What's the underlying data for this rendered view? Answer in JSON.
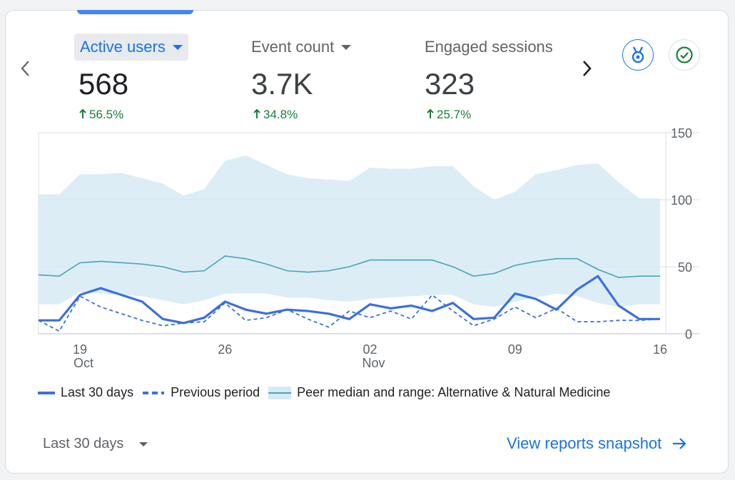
{
  "metrics": [
    {
      "label": "Active users",
      "value": "568",
      "change": "56.5%",
      "active": true
    },
    {
      "label": "Event count",
      "value": "3.7K",
      "change": "34.8%",
      "active": false
    },
    {
      "label": "Engaged sessions",
      "value": "323",
      "change": "25.7%",
      "active": false
    }
  ],
  "buttons": {
    "badge_icon": "medal-icon",
    "check_icon": "check-circle-icon",
    "prev_icon": "chevron-left-icon",
    "next_icon": "chevron-right-icon",
    "up_arrow": "arrow-up-icon"
  },
  "colors": {
    "accent": "#1a73e8",
    "series_current": "#3b6fde",
    "peer_band": "#d6eaf5",
    "peer_line": "#4aa3b5",
    "positive": "#188038"
  },
  "chart_data": {
    "type": "line",
    "x": [
      "Oct 17",
      "Oct 18",
      "Oct 19",
      "Oct 20",
      "Oct 21",
      "Oct 22",
      "Oct 23",
      "Oct 24",
      "Oct 25",
      "Oct 26",
      "Oct 27",
      "Oct 28",
      "Oct 29",
      "Oct 30",
      "Oct 31",
      "Nov 01",
      "Nov 02",
      "Nov 03",
      "Nov 04",
      "Nov 05",
      "Nov 06",
      "Nov 07",
      "Nov 08",
      "Nov 09",
      "Nov 10",
      "Nov 11",
      "Nov 12",
      "Nov 13",
      "Nov 14",
      "Nov 15",
      "Nov 16"
    ],
    "x_ticks": [
      {
        "day": "19",
        "month": "Oct"
      },
      {
        "day": "26",
        "month": ""
      },
      {
        "day": "02",
        "month": "Nov"
      },
      {
        "day": "09",
        "month": ""
      },
      {
        "day": "16",
        "month": ""
      }
    ],
    "y_ticks": [
      "0",
      "50",
      "100",
      "150"
    ],
    "ylim": [
      0,
      150
    ],
    "grid": true,
    "series": [
      {
        "name": "Last 30 days",
        "style": "solid",
        "values": [
          10,
          10,
          29,
          34,
          29,
          24,
          11,
          8,
          12,
          24,
          18,
          15,
          18,
          17,
          15,
          11,
          22,
          19,
          21,
          17,
          23,
          11,
          12,
          30,
          26,
          18,
          33,
          43,
          21,
          11,
          11
        ]
      },
      {
        "name": "Previous period",
        "style": "dashed",
        "values": [
          10,
          2,
          28,
          20,
          15,
          10,
          6,
          8,
          9,
          23,
          10,
          12,
          18,
          11,
          5,
          17,
          12,
          17,
          11,
          29,
          17,
          6,
          11,
          20,
          12,
          19,
          9,
          9,
          10,
          10,
          11
        ]
      },
      {
        "name": "Peer median and range: Alternative & Natural Medicine",
        "style": "band",
        "median": [
          44,
          43,
          53,
          54,
          53,
          52,
          50,
          46,
          47,
          58,
          56,
          52,
          47,
          46,
          47,
          50,
          55,
          55,
          55,
          55,
          50,
          43,
          45,
          51,
          54,
          56,
          56,
          48,
          42,
          43,
          43
        ],
        "upper": [
          104,
          104,
          119,
          119,
          120,
          116,
          112,
          103,
          108,
          129,
          133,
          126,
          119,
          116,
          115,
          114,
          124,
          123,
          123,
          125,
          125,
          110,
          100,
          106,
          119,
          122,
          126,
          127,
          113,
          101,
          101
        ],
        "lower": [
          22,
          22,
          31,
          30,
          29,
          28,
          25,
          22,
          25,
          30,
          30,
          30,
          27,
          27,
          25,
          24,
          26,
          27,
          28,
          29,
          29,
          22,
          20,
          24,
          27,
          30,
          28,
          23,
          20,
          22,
          22
        ]
      }
    ]
  },
  "legend": {
    "current": "Last 30 days",
    "previous": "Previous period",
    "peer": "Peer median and range: Alternative & Natural Medicine"
  },
  "footer": {
    "range_label": "Last 30 days",
    "snapshot_link": "View reports snapshot",
    "arrow_icon": "arrow-right-icon"
  }
}
